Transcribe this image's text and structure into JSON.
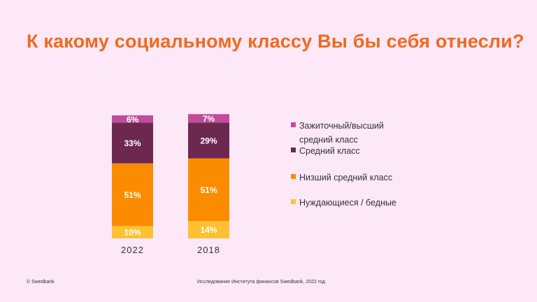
{
  "title": "К какому социальному классу Вы бы себя отнесли?",
  "footer": {
    "copyright": "© Swedbank",
    "source": "Исследование Института финансов Swedbank, 2022 год"
  },
  "colors": {
    "background": "#fde8f7",
    "title": "#ee6a1e"
  },
  "chart_data": {
    "type": "bar",
    "stacked": true,
    "categories": [
      "2022",
      "2018"
    ],
    "series": [
      {
        "name": "Нуждающиеся / бедные",
        "values": [
          10,
          14
        ],
        "labels": [
          "10%",
          "14%"
        ],
        "color": "#fdc232"
      },
      {
        "name": "Низший средний класс",
        "values": [
          51,
          51
        ],
        "labels": [
          "51%",
          "51%"
        ],
        "color": "#fb8c00"
      },
      {
        "name": "Средний класс",
        "values": [
          33,
          29
        ],
        "labels": [
          "33%",
          "29%"
        ],
        "color": "#6d2850"
      },
      {
        "name": "Зажиточный/высший средний класс",
        "values": [
          6,
          7
        ],
        "labels": [
          "6%",
          "7%"
        ],
        "color": "#c04c9a"
      }
    ],
    "legend_order": [
      3,
      2,
      1,
      0
    ],
    "legend_position": "right",
    "ylim": [
      0,
      100
    ],
    "grid": false
  }
}
